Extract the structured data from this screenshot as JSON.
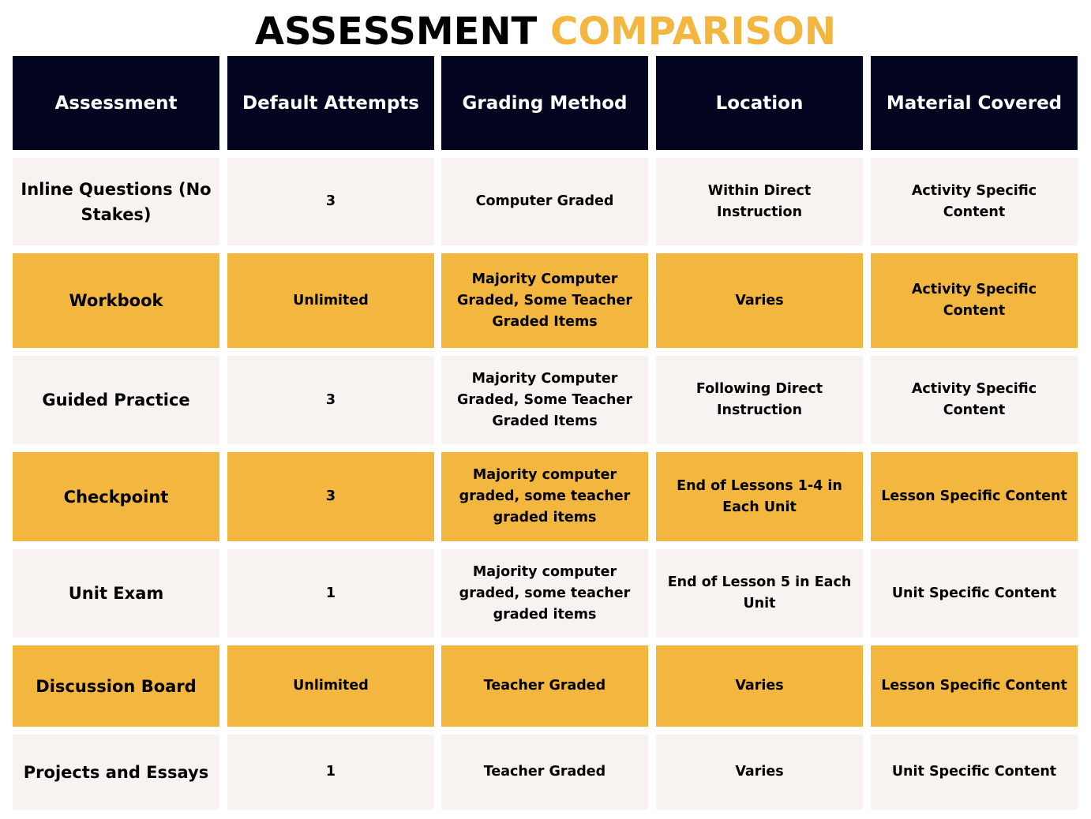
{
  "title": {
    "part1": "ASSESSMENT",
    "part2": "COMPARISON"
  },
  "colors": {
    "header_bg": "#020420",
    "header_text": "#ffffff",
    "accent": "#f3b63f",
    "light_row": "#f8f3f0",
    "text": "#000000"
  },
  "table": {
    "headers": [
      "Assessment",
      "Default Attempts",
      "Grading Method",
      "Location",
      "Material Covered"
    ],
    "rows": [
      [
        "Inline Questions (No Stakes)",
        "3",
        "Computer Graded",
        "Within Direct Instruction",
        "Activity Specific Content"
      ],
      [
        "Workbook",
        "Unlimited",
        "Majority Computer Graded, Some Teacher Graded Items",
        "Varies",
        "Activity Specific Content"
      ],
      [
        "Guided Practice",
        "3",
        "Majority Computer Graded, Some Teacher Graded Items",
        "Following Direct Instruction",
        "Activity Specific Content"
      ],
      [
        "Checkpoint",
        "3",
        "Majority computer graded, some teacher graded items",
        "End of Lessons 1-4 in Each Unit",
        "Lesson Specific Content"
      ],
      [
        "Unit Exam",
        "1",
        "Majority computer graded, some teacher graded items",
        "End of Lesson 5 in Each Unit",
        "Unit Specific Content"
      ],
      [
        "Discussion Board",
        "Unlimited",
        "Teacher Graded",
        "Varies",
        "Lesson Specific Content"
      ],
      [
        "Projects and Essays",
        "1",
        "Teacher Graded",
        "Varies",
        "Unit Specific Content"
      ]
    ]
  }
}
